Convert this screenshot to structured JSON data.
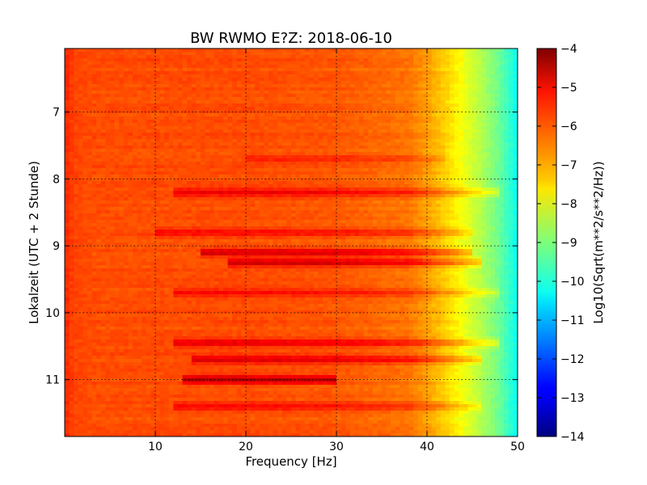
{
  "chart_data": {
    "type": "heatmap",
    "title": "BW RWMO E?Z: 2018-06-10",
    "xlabel": "Frequency [Hz]",
    "ylabel": "Lokalzeit (UTC + 2 Stunde)",
    "xlim": [
      0,
      50
    ],
    "ylim": [
      11.85,
      6.05
    ],
    "x_ticks": [
      10,
      20,
      30,
      40,
      50
    ],
    "x_tick_labels": [
      "10",
      "20",
      "30",
      "40",
      "50"
    ],
    "y_ticks": [
      7,
      8,
      9,
      10,
      11
    ],
    "y_tick_labels": [
      "7",
      "8",
      "9",
      "10",
      "11"
    ],
    "grid": true,
    "colormap": "jet",
    "colorbar": {
      "label": "Log10(Sqrt(m**2/s**2/Hz))",
      "vmin": -14,
      "vmax": -4,
      "ticks": [
        -4,
        -5,
        -6,
        -7,
        -8,
        -9,
        -10,
        -11,
        -12,
        -13,
        -14
      ],
      "tick_labels": [
        "−4",
        "−5",
        "−6",
        "−7",
        "−8",
        "−9",
        "−10",
        "−11",
        "−12",
        "−13",
        "−14"
      ]
    },
    "frequency_profile": {
      "frequency_hz": [
        0,
        1,
        3,
        10,
        20,
        30,
        38,
        40,
        42,
        44,
        46,
        48,
        49,
        50
      ],
      "log10_amplitude": [
        -5.6,
        -5.9,
        -6.0,
        -6.0,
        -6.0,
        -6.1,
        -6.4,
        -6.8,
        -7.3,
        -7.9,
        -8.5,
        -9.2,
        -9.7,
        -10.2
      ]
    },
    "high_amplitude_bands": [
      {
        "time": 7.7,
        "fmin": 20,
        "fmax": 42,
        "value": -5.6
      },
      {
        "time": 8.2,
        "fmin": 12,
        "fmax": 48,
        "value": -5.2
      },
      {
        "time": 8.8,
        "fmin": 10,
        "fmax": 45,
        "value": -5.4
      },
      {
        "time": 9.1,
        "fmin": 15,
        "fmax": 45,
        "value": -4.9
      },
      {
        "time": 9.25,
        "fmin": 18,
        "fmax": 46,
        "value": -4.8
      },
      {
        "time": 9.7,
        "fmin": 12,
        "fmax": 48,
        "value": -5.4
      },
      {
        "time": 10.45,
        "fmin": 12,
        "fmax": 48,
        "value": -5.1
      },
      {
        "time": 10.7,
        "fmin": 14,
        "fmax": 46,
        "value": -5.0
      },
      {
        "time": 11.0,
        "fmin": 13,
        "fmax": 30,
        "value": -4.6
      },
      {
        "time": 11.4,
        "fmin": 12,
        "fmax": 46,
        "value": -5.4
      }
    ]
  }
}
